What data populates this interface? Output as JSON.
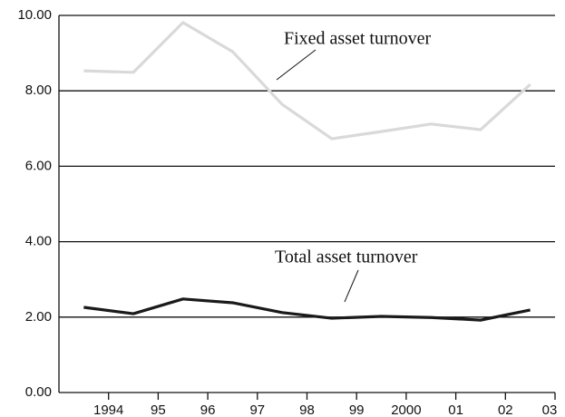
{
  "chart_data": {
    "type": "line",
    "categories": [
      "1994",
      "95",
      "96",
      "97",
      "98",
      "99",
      "2000",
      "01",
      "02",
      "03"
    ],
    "series": [
      {
        "name": "Fixed asset turnover",
        "color": "#d9d9d9",
        "values": [
          8.53,
          8.49,
          9.81,
          9.04,
          7.64,
          6.73,
          6.92,
          7.12,
          6.97,
          8.17
        ]
      },
      {
        "name": "Total asset turnover",
        "color": "#1a1a1a",
        "values": [
          2.26,
          2.09,
          2.48,
          2.38,
          2.12,
          1.97,
          2.02,
          1.99,
          1.92,
          2.19
        ]
      }
    ],
    "ylim": [
      0,
      10
    ],
    "yticks": [
      {
        "value": 0,
        "label": "0.00"
      },
      {
        "value": 2,
        "label": "2.00"
      },
      {
        "value": 4,
        "label": "4.00"
      },
      {
        "value": 6,
        "label": "6.00"
      },
      {
        "value": 8,
        "label": "8.00"
      },
      {
        "value": 10,
        "label": "10.00"
      }
    ],
    "grid": true
  }
}
